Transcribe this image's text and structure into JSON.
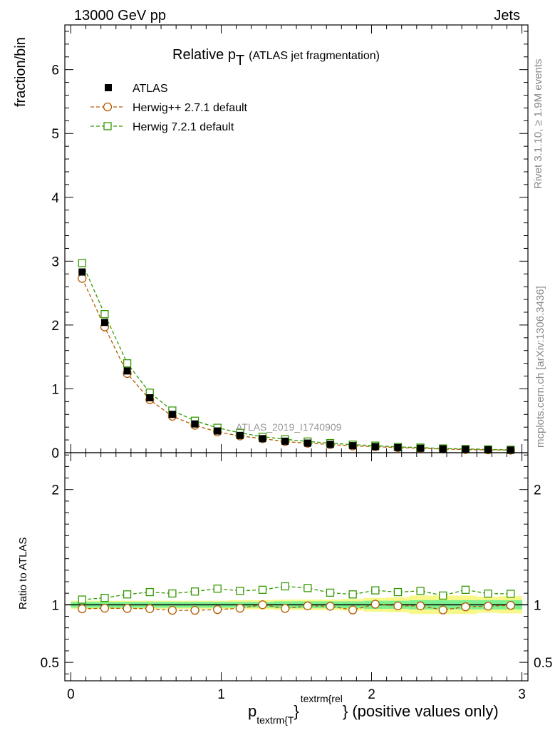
{
  "header": {
    "left": "13000 GeV pp",
    "right": "Jets"
  },
  "side_labels": {
    "rivet": "Rivet 3.1.10, ≥ 1.9M events",
    "mcplots": "mcplots.cern.ch [arXiv:1306.3436]"
  },
  "title": {
    "main": "Relative p",
    "sub": "T",
    "rest": "(ATLAS jet fragmentation)"
  },
  "watermark": "ATLAS_2019_I1740909",
  "xlabel": {
    "p": "p",
    "sub": "textrm{T",
    "sup": "textrm{rel",
    "close": "}",
    "rest": "} (positive values only)"
  },
  "colors": {
    "data": "#000000",
    "herwigpp": "#b35a00",
    "herwig7": "#339900",
    "band_inner": "#7df08f",
    "band_outer": "#f8f88a"
  },
  "chart_data": [
    {
      "type": "line",
      "panel": "main",
      "ylabel": "fraction/bin",
      "xlim": [
        -0.04,
        3.04
      ],
      "ylim": [
        0,
        6.7
      ],
      "yticks": [
        "0",
        "1",
        "2",
        "3",
        "4",
        "5",
        "6"
      ],
      "xticks": [
        "0",
        "1",
        "2",
        "3"
      ],
      "x": [
        0.075,
        0.225,
        0.375,
        0.525,
        0.675,
        0.825,
        0.975,
        1.125,
        1.275,
        1.425,
        1.575,
        1.725,
        1.875,
        2.025,
        2.175,
        2.325,
        2.475,
        2.625,
        2.775,
        2.925
      ],
      "series": [
        {
          "name": "ATLAS",
          "marker": "filled-square",
          "values": [
            2.83,
            2.04,
            1.28,
            0.86,
            0.6,
            0.45,
            0.34,
            0.27,
            0.22,
            0.18,
            0.15,
            0.13,
            0.11,
            0.095,
            0.08,
            0.07,
            0.06,
            0.05,
            0.045,
            0.04
          ]
        },
        {
          "name": "Herwig++ 2.7.1 default",
          "marker": "open-circle",
          "values": [
            2.73,
            1.97,
            1.24,
            0.83,
            0.57,
            0.43,
            0.325,
            0.262,
            0.22,
            0.174,
            0.148,
            0.128,
            0.105,
            0.095,
            0.079,
            0.069,
            0.057,
            0.049,
            0.044,
            0.04
          ]
        },
        {
          "name": "Herwig 7.2.1 default",
          "marker": "open-square",
          "values": [
            2.97,
            2.17,
            1.4,
            0.94,
            0.66,
            0.5,
            0.39,
            0.31,
            0.25,
            0.21,
            0.175,
            0.15,
            0.125,
            0.11,
            0.09,
            0.08,
            0.066,
            0.058,
            0.051,
            0.045
          ]
        }
      ]
    },
    {
      "type": "line",
      "panel": "ratio",
      "ylabel": "Ratio to ATLAS",
      "xlim": [
        -0.04,
        3.04
      ],
      "ylim": [
        0.34,
        2.32
      ],
      "yticks": [
        "0.5",
        "1",
        "2"
      ],
      "x": [
        0.075,
        0.225,
        0.375,
        0.525,
        0.675,
        0.825,
        0.975,
        1.125,
        1.275,
        1.425,
        1.575,
        1.725,
        1.875,
        2.025,
        2.175,
        2.325,
        2.475,
        2.625,
        2.775,
        2.925
      ],
      "band_inner": [
        0.025,
        0.025,
        0.025,
        0.025,
        0.025,
        0.025,
        0.025,
        0.025,
        0.025,
        0.03,
        0.03,
        0.03,
        0.03,
        0.035,
        0.035,
        0.04,
        0.04,
        0.04,
        0.04,
        0.04
      ],
      "band_outer": [
        0.035,
        0.035,
        0.035,
        0.035,
        0.035,
        0.035,
        0.035,
        0.04,
        0.04,
        0.045,
        0.045,
        0.045,
        0.05,
        0.06,
        0.065,
        0.08,
        0.08,
        0.08,
        0.07,
        0.075
      ],
      "series": [
        {
          "name": "Herwig++ 2.7.1 default",
          "marker": "open-circle",
          "values": [
            0.965,
            0.97,
            0.968,
            0.966,
            0.952,
            0.952,
            0.958,
            0.97,
            1.0,
            0.968,
            0.99,
            0.987,
            0.955,
            1.005,
            0.99,
            0.99,
            0.955,
            0.982,
            0.988,
            0.995
          ]
        },
        {
          "name": "Herwig 7.2.1 default",
          "marker": "open-square",
          "values": [
            1.045,
            1.06,
            1.09,
            1.11,
            1.098,
            1.115,
            1.14,
            1.12,
            1.13,
            1.16,
            1.145,
            1.105,
            1.09,
            1.125,
            1.11,
            1.12,
            1.08,
            1.13,
            1.097,
            1.095
          ]
        }
      ]
    }
  ]
}
